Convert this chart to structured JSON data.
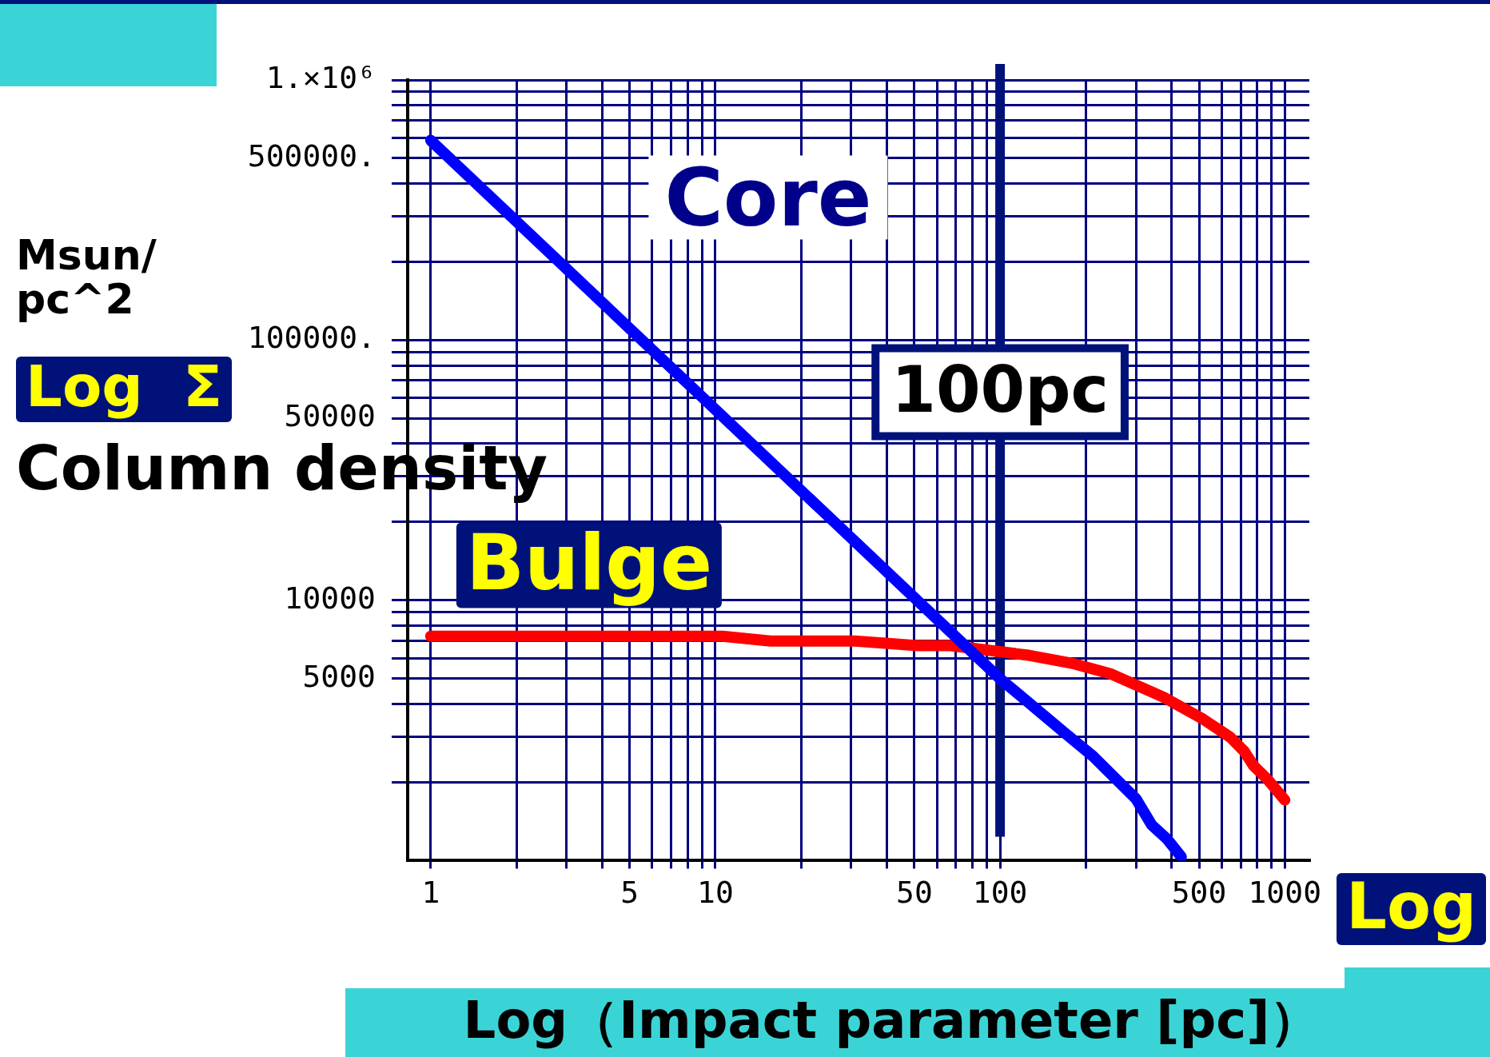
{
  "chart_data": {
    "type": "line",
    "xlabel": "Log（Impact parameter [pc]）",
    "ylabel": "Column density",
    "annotations": [
      "Msun/\npc^2",
      "Log  Σ",
      "Log",
      "Core",
      "Bulge"
    ],
    "log": "xy",
    "grid": true,
    "legend": false,
    "marker": "none",
    "line_style": "solid",
    "xlim": [
      0.83,
      1220
    ],
    "ylim": [
      1000,
      1000000
    ],
    "xticks": [
      1,
      {
        "value": 2,
        "label": null
      },
      {
        "value": 3,
        "label": null
      },
      {
        "value": 4,
        "label": null
      },
      5,
      {
        "value": 6,
        "label": null
      },
      {
        "value": 7,
        "label": null
      },
      {
        "value": 8,
        "label": null
      },
      {
        "value": 9,
        "label": null
      },
      10,
      {
        "value": 20,
        "label": null
      },
      {
        "value": 30,
        "label": null
      },
      {
        "value": 40,
        "label": null
      },
      50,
      {
        "value": 60,
        "label": null
      },
      {
        "value": 70,
        "label": null
      },
      {
        "value": 80,
        "label": null
      },
      {
        "value": 90,
        "label": null
      },
      100,
      {
        "value": 200,
        "label": null
      },
      {
        "value": 300,
        "label": null
      },
      {
        "value": 400,
        "label": null
      },
      500,
      {
        "value": 600,
        "label": null
      },
      {
        "value": 700,
        "label": null
      },
      {
        "value": 800,
        "label": null
      },
      {
        "value": 900,
        "label": null
      },
      1000
    ],
    "yticks": [
      {
        "value": 2000,
        "label": null
      },
      {
        "value": 3000,
        "label": null
      },
      {
        "value": 4000,
        "label": null
      },
      5000,
      {
        "value": 6000,
        "label": null
      },
      {
        "value": 7000,
        "label": null
      },
      {
        "value": 8000,
        "label": null
      },
      {
        "value": 9000,
        "label": null
      },
      10000,
      {
        "value": 20000,
        "label": null
      },
      {
        "value": 30000,
        "label": null
      },
      {
        "value": 40000,
        "label": null
      },
      50000,
      {
        "value": 60000,
        "label": null
      },
      {
        "value": 70000,
        "label": null
      },
      {
        "value": 80000,
        "label": null
      },
      {
        "value": 90000,
        "label": null
      },
      {
        "value": 100000,
        "label": "100000."
      },
      {
        "value": 200000,
        "label": null
      },
      {
        "value": 300000,
        "label": null
      },
      {
        "value": 400000,
        "label": null
      },
      {
        "value": 500000,
        "label": "500000."
      },
      {
        "value": 600000,
        "label": null
      },
      {
        "value": 700000,
        "label": null
      },
      {
        "value": 800000,
        "label": null
      },
      {
        "value": 900000,
        "label": null
      },
      {
        "value": 1000000,
        "label": "1.×10⁶"
      }
    ],
    "ref_lines": [
      {
        "axis": "x",
        "value": 100,
        "label": "100pc",
        "color": "#00127a"
      }
    ],
    "series": [
      {
        "color": "#0000ff",
        "x": [
          1,
          100,
          168,
          212,
          300,
          341,
          386,
          433
        ],
        "values": [
          586000,
          5000,
          3110,
          2520,
          1730,
          1370,
          1210,
          1035
        ]
      },
      {
        "color": "#ff0000",
        "x": [
          1,
          10.6,
          15.6,
          31,
          51.4,
          67,
          124,
          182,
          246,
          376,
          512,
          644,
          721,
          776,
          871,
          1000
        ],
        "values": [
          7280,
          7280,
          6980,
          6980,
          6700,
          6700,
          6170,
          5710,
          5210,
          4240,
          3520,
          2980,
          2630,
          2320,
          2050,
          1710
        ]
      }
    ]
  }
}
